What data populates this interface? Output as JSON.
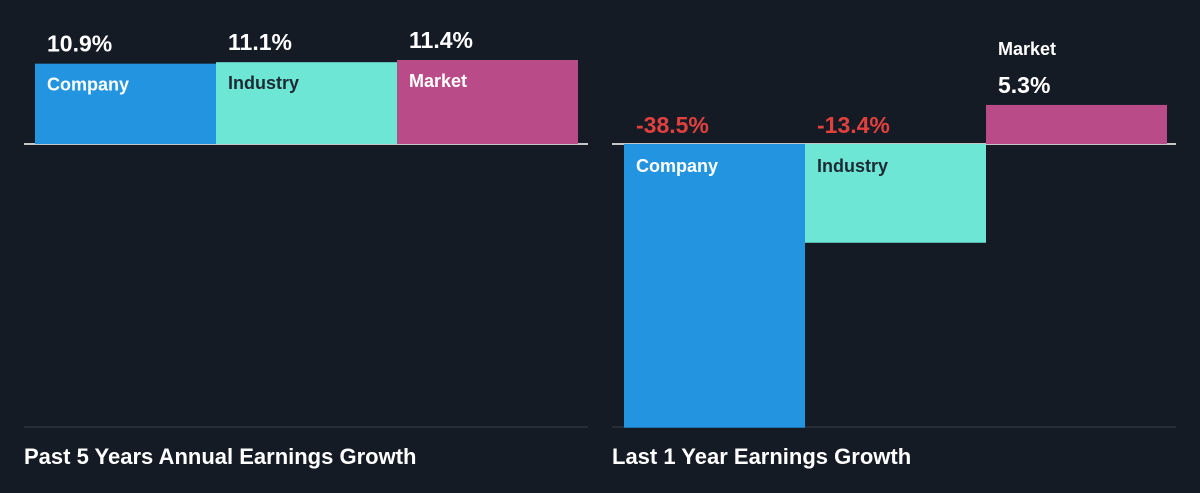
{
  "colors": {
    "background": "#151b24",
    "company": "#2394e0",
    "industry": "#6ee6d6",
    "market": "#b94b88",
    "negative_text": "#e0413f",
    "baseline": "#ffffff",
    "divider": "#3a4048"
  },
  "chart_data": [
    {
      "type": "bar",
      "title": "Past 5 Years Annual Earnings Growth",
      "categories": [
        "Company",
        "Industry",
        "Market"
      ],
      "values": [
        10.9,
        11.1,
        11.4
      ],
      "value_labels": [
        "10.9%",
        "11.1%",
        "11.4%"
      ],
      "unit": "%",
      "ylim": [
        -40,
        12
      ],
      "grid": false,
      "legend": "none"
    },
    {
      "type": "bar",
      "title": "Last 1 Year Earnings Growth",
      "categories": [
        "Company",
        "Industry",
        "Market"
      ],
      "values": [
        -38.5,
        -13.4,
        5.3
      ],
      "value_labels": [
        "-38.5%",
        "-13.4%",
        "5.3%"
      ],
      "unit": "%",
      "ylim": [
        -40,
        12
      ],
      "grid": false,
      "legend": "none"
    }
  ]
}
